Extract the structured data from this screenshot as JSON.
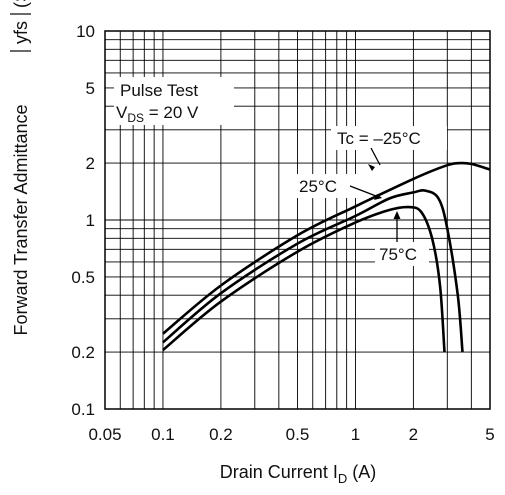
{
  "chart_data": {
    "type": "line",
    "x_scale": "log",
    "y_scale": "log",
    "xlim": [
      0.05,
      5
    ],
    "ylim": [
      0.1,
      10
    ],
    "grid": true,
    "xlabel": {
      "main": "Drain Current  I",
      "sub": "D",
      "unit": "  (A)"
    },
    "ylabel": {
      "main": "Forward Transfer Admittance",
      "sym": "yfs",
      "unit": "(S)"
    },
    "x_ticks": [
      {
        "v": 0.05,
        "label": "0.05"
      },
      {
        "v": 0.1,
        "label": "0.1"
      },
      {
        "v": 0.2,
        "label": "0.2"
      },
      {
        "v": 0.5,
        "label": "0.5"
      },
      {
        "v": 1,
        "label": "1"
      },
      {
        "v": 2,
        "label": "2"
      },
      {
        "v": 5,
        "label": "5"
      }
    ],
    "y_ticks": [
      {
        "v": 0.1,
        "label": "0.1"
      },
      {
        "v": 0.2,
        "label": "0.2"
      },
      {
        "v": 0.5,
        "label": "0.5"
      },
      {
        "v": 1,
        "label": "1"
      },
      {
        "v": 2,
        "label": "2"
      },
      {
        "v": 5,
        "label": "5"
      },
      {
        "v": 10,
        "label": "10"
      }
    ],
    "annotations": {
      "pulse_test": "Pulse Test",
      "vds": {
        "main": "V",
        "sub": "DS",
        "rest": " = 20 V"
      }
    },
    "series": [
      {
        "name": "Tc = –25°C",
        "points": [
          [
            0.1,
            0.25
          ],
          [
            0.2,
            0.45
          ],
          [
            0.5,
            0.83
          ],
          [
            1,
            1.18
          ],
          [
            2,
            1.65
          ],
          [
            3,
            1.95
          ],
          [
            3.5,
            2.0
          ],
          [
            4,
            1.98
          ],
          [
            5,
            1.85
          ]
        ]
      },
      {
        "name": "25°C",
        "points": [
          [
            0.1,
            0.225
          ],
          [
            0.2,
            0.41
          ],
          [
            0.5,
            0.75
          ],
          [
            1,
            1.05
          ],
          [
            1.5,
            1.3
          ],
          [
            2,
            1.4
          ],
          [
            2.3,
            1.43
          ],
          [
            2.7,
            1.3
          ],
          [
            3.0,
            0.9
          ],
          [
            3.4,
            0.4
          ],
          [
            3.6,
            0.2
          ]
        ]
      },
      {
        "name": "75°C",
        "points": [
          [
            0.1,
            0.205
          ],
          [
            0.2,
            0.37
          ],
          [
            0.5,
            0.68
          ],
          [
            1,
            0.97
          ],
          [
            1.5,
            1.13
          ],
          [
            1.9,
            1.17
          ],
          [
            2.2,
            1.1
          ],
          [
            2.5,
            0.8
          ],
          [
            2.75,
            0.45
          ],
          [
            2.9,
            0.2
          ]
        ]
      }
    ]
  }
}
